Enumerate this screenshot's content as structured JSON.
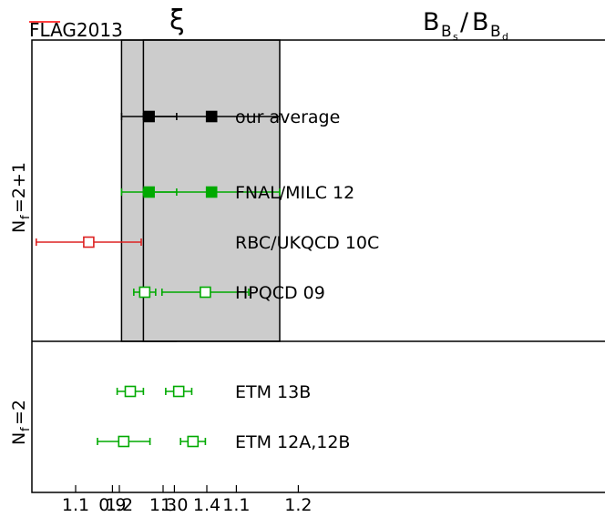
{
  "watermark": "FLAG2013",
  "colors": {
    "average": "#000000",
    "fnal": "#00aa00",
    "rbc": "#dd2222",
    "others": "#00aa00",
    "band": "#cccccc",
    "watermark": "#ff0000"
  },
  "chart_data": {
    "type": "scatter",
    "panels": [
      {
        "title_main": "ξ",
        "xlim": [
          1.0,
          1.44
        ],
        "ticks": [
          1.1,
          1.2,
          1.3,
          1.4
        ],
        "band": [
          1.205,
          1.33
        ]
      },
      {
        "title_main": "B",
        "title_sub1": "B",
        "title_sub1_sub": "s",
        "title_sep": "/",
        "title_sub2": "B",
        "title_sub2_sub": "d",
        "xlim": [
          0.77,
          1.37
        ],
        "ticks": [
          0.9,
          1.0,
          1.1,
          1.2
        ],
        "band": [
          0.95,
          1.17
        ]
      }
    ],
    "groups": [
      {
        "label": "N",
        "label_sub": "f",
        "label_value": "=2+1"
      },
      {
        "label": "N",
        "label_sub": "f",
        "label_value": "=2"
      }
    ],
    "entries": [
      {
        "study": "our average",
        "group": 0,
        "style": "filled",
        "color": "#000000",
        "xi": {
          "value": 1.268,
          "err": [
            0.063,
            0.063
          ]
        },
        "ratio": {
          "value": 1.06,
          "err": [
            0.11,
            0.11
          ]
        }
      },
      {
        "study": "FNAL/MILC 12",
        "group": 0,
        "style": "filled",
        "color": "#00aa00",
        "xi": {
          "value": 1.268,
          "err": [
            0.063,
            0.063
          ]
        },
        "ratio": {
          "value": 1.06,
          "err": [
            0.11,
            0.11
          ]
        }
      },
      {
        "study": "RBC/UKQCD 10C",
        "group": 0,
        "style": "open",
        "color": "#dd2222",
        "xi": {
          "value": 1.13,
          "err": [
            0.12,
            0.12
          ]
        },
        "ratio": null
      },
      {
        "study": "HPQCD 09",
        "group": 0,
        "style": "open",
        "color": "#00aa00",
        "xi": {
          "value": 1.258,
          "err": [
            0.025,
            0.025
          ]
        },
        "ratio": {
          "value": 1.05,
          "err": [
            0.07,
            0.07
          ]
        }
      },
      {
        "study": "ETM 13B",
        "group": 1,
        "style": "open",
        "color": "#00aa00",
        "xi": {
          "value": 1.225,
          "err": [
            0.03,
            0.03
          ]
        },
        "ratio": {
          "value": 1.007,
          "err": [
            0.021,
            0.021
          ]
        }
      },
      {
        "study": "ETM 12A,12B",
        "group": 1,
        "style": "open",
        "color": "#00aa00",
        "xi": {
          "value": 1.21,
          "err": [
            0.06,
            0.06
          ]
        },
        "ratio": {
          "value": 1.03,
          "err": [
            0.02,
            0.02
          ]
        }
      }
    ]
  }
}
